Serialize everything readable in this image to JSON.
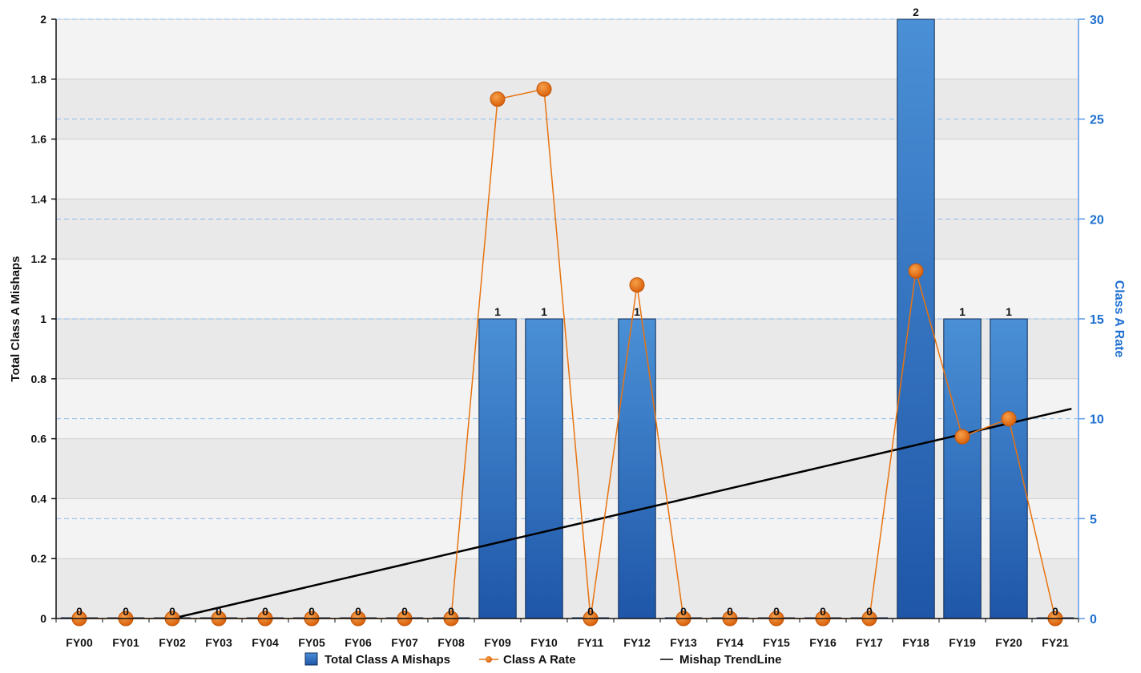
{
  "chart_data": {
    "type": "bar",
    "categories": [
      "FY00",
      "FY01",
      "FY02",
      "FY03",
      "FY04",
      "FY05",
      "FY06",
      "FY07",
      "FY08",
      "FY09",
      "FY10",
      "FY11",
      "FY12",
      "FY13",
      "FY14",
      "FY15",
      "FY16",
      "FY17",
      "FY18",
      "FY19",
      "FY20",
      "FY21"
    ],
    "series": [
      {
        "name": "Total Class A Mishaps",
        "type": "bar",
        "axis": "left",
        "color": "#2f6fc2",
        "values": [
          0,
          0,
          0,
          0,
          0,
          0,
          0,
          0,
          0,
          1,
          1,
          0,
          1,
          0,
          0,
          0,
          0,
          0,
          2,
          1,
          1,
          0
        ]
      },
      {
        "name": "Class A Rate",
        "type": "line",
        "axis": "right",
        "color": "#e8730f",
        "values": [
          0,
          0,
          0,
          0,
          0,
          0,
          0,
          0,
          0,
          26.0,
          26.5,
          0,
          16.7,
          0,
          0,
          0,
          0,
          0,
          17.4,
          9.1,
          10.0,
          0
        ]
      },
      {
        "name": "Mishap TrendLine",
        "type": "line",
        "axis": "left",
        "color": "#000000",
        "start": {
          "x": "FY02",
          "y": 0.0
        },
        "end": {
          "x": "FY21",
          "y": 0.7
        }
      }
    ],
    "ylabel": "Total Class A Mishaps",
    "ylabel_right": "Class A Rate",
    "ylim": [
      0,
      2
    ],
    "ylim_right": [
      0,
      30
    ],
    "yticks": [
      "0",
      "0.2",
      "0.4",
      "0.6",
      "0.8",
      "1",
      "1.2",
      "1.4",
      "1.6",
      "1.8",
      "2"
    ],
    "yticks_right": [
      "0",
      "5",
      "10",
      "15",
      "20",
      "25",
      "30"
    ],
    "legend_position": "bottom",
    "grid": true
  }
}
